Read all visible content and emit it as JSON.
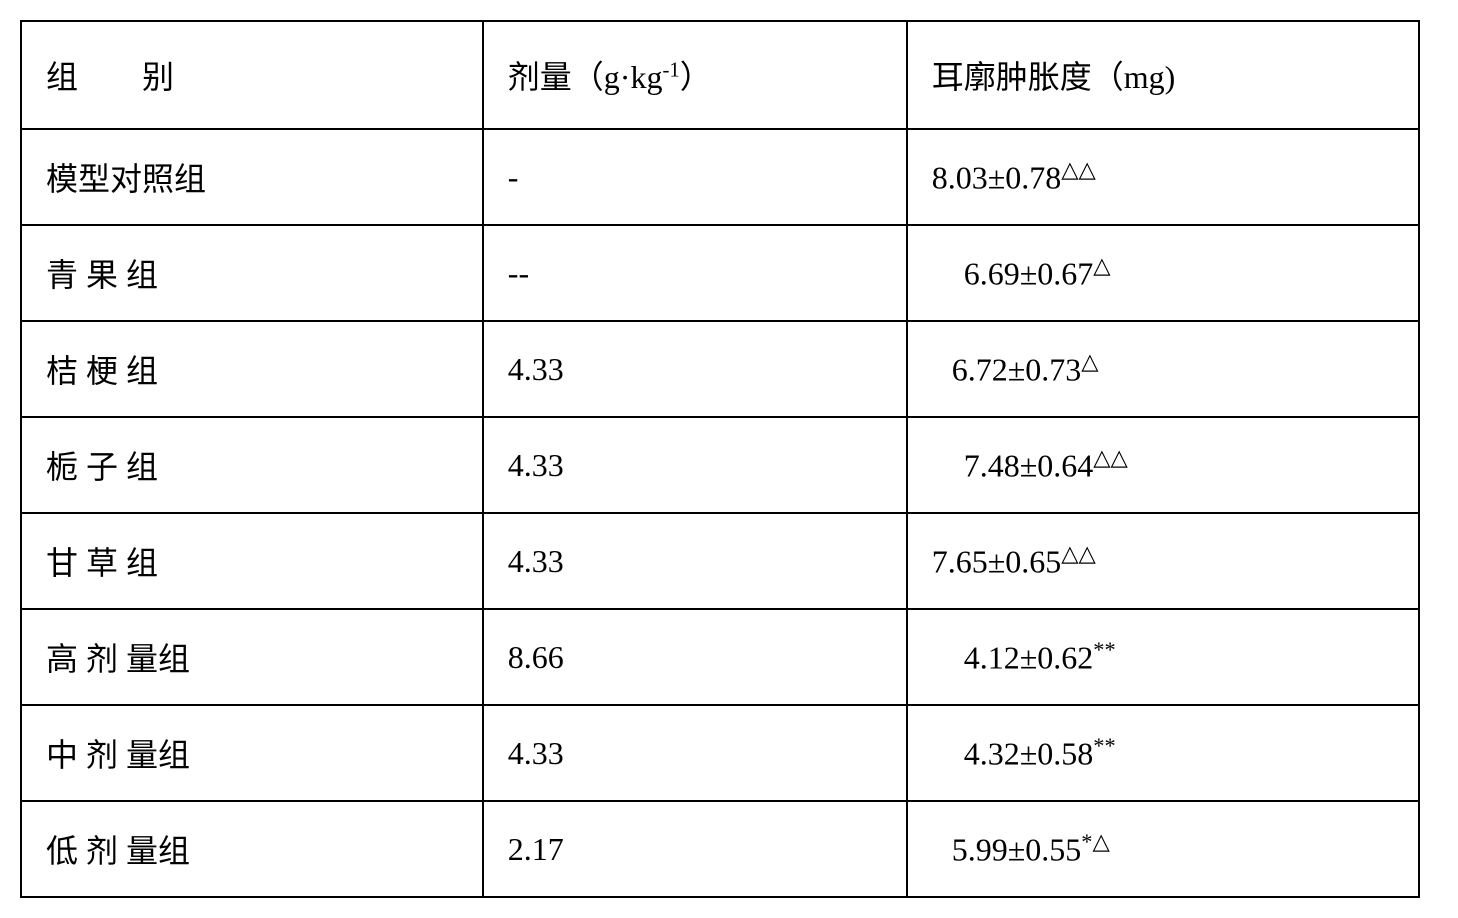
{
  "table": {
    "type": "table",
    "border_color": "#000000",
    "background_color": "#ffffff",
    "text_color": "#000000",
    "font_family": "SimSun, serif",
    "font_size_pt": 24,
    "columns": [
      {
        "label_parts": [
          "组",
          "别"
        ],
        "label_gap": "2em"
      },
      {
        "label": "剂量（g·kg",
        "sup": "-1",
        "label_suffix": "）"
      },
      {
        "label": "耳廓肿胀度（mg)"
      }
    ],
    "rows": [
      {
        "group": "模型对照组",
        "group_spaced": false,
        "dose": "-",
        "value": "8.03±0.78",
        "sup": "△△",
        "indent": 0
      },
      {
        "group": "青 果 组",
        "group_spaced": true,
        "dose": "--",
        "value": "6.69±0.67",
        "sup": "△",
        "indent": 1
      },
      {
        "group": "桔 梗 组",
        "group_spaced": true,
        "dose": "4.33",
        "value": "6.72±0.73",
        "sup": "△",
        "indent": 2
      },
      {
        "group": "栀 子 组",
        "group_spaced": true,
        "dose": "4.33",
        "value": "7.48±0.64",
        "sup": "△△",
        "indent": 1
      },
      {
        "group": "甘 草 组",
        "group_spaced": true,
        "dose": "4.33",
        "value": "7.65±0.65",
        "sup": "△△",
        "indent": 0
      },
      {
        "group": "高 剂 量组",
        "group_spaced": true,
        "dose": "8.66",
        "value": "4.12±0.62",
        "sup": "**",
        "indent": 1
      },
      {
        "group": "中 剂 量组",
        "group_spaced": true,
        "dose": "4.33",
        "value": "4.32±0.58",
        "sup": "**",
        "indent": 1
      },
      {
        "group": "低 剂 量组",
        "group_spaced": true,
        "dose": "2.17",
        "value": "5.99±0.55",
        "sup": "*△",
        "indent": 2
      }
    ]
  }
}
